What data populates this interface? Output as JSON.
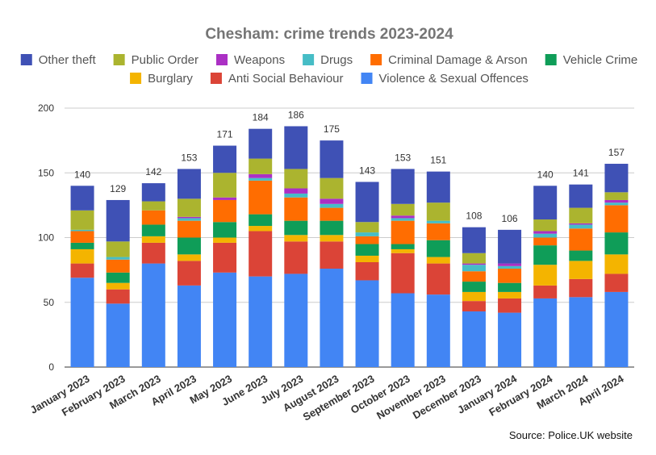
{
  "chart_data": {
    "type": "bar",
    "stacked": true,
    "title": "Chesham: crime trends 2023-2024",
    "source": "Source: Police.UK website",
    "ylim": [
      0,
      200
    ],
    "yticks": [
      0,
      50,
      100,
      150,
      200
    ],
    "grid": true,
    "legend_position": "top",
    "categories": [
      "January 2023",
      "February 2023",
      "March 2023",
      "April 2023",
      "May 2023",
      "June 2023",
      "July 2023",
      "August 2023",
      "September 2023",
      "October 2023",
      "November 2023",
      "December 2023",
      "January 2024",
      "February 2024",
      "March 2024",
      "April 2024"
    ],
    "totals": [
      140,
      129,
      142,
      153,
      171,
      184,
      186,
      175,
      143,
      153,
      151,
      108,
      106,
      140,
      141,
      157
    ],
    "legend_order": [
      "Other theft",
      "Public Order",
      "Weapons",
      "Drugs",
      "Criminal Damage & Arson",
      "Vehicle Crime",
      "Burglary",
      "Anti Social Behaviour",
      "Violence & Sexual Offences"
    ],
    "series": [
      {
        "name": "Violence & Sexual Offences",
        "color": "#4285f4",
        "values": [
          69,
          49,
          80,
          63,
          73,
          70,
          72,
          76,
          67,
          57,
          56,
          43,
          42,
          53,
          54,
          58
        ]
      },
      {
        "name": "Anti Social Behaviour",
        "color": "#db4437",
        "values": [
          11,
          11,
          16,
          19,
          23,
          35,
          25,
          21,
          14,
          31,
          24,
          8,
          11,
          10,
          14,
          14
        ]
      },
      {
        "name": "Burglary",
        "color": "#f4b400",
        "values": [
          11,
          5,
          5,
          5,
          4,
          4,
          5,
          5,
          5,
          3,
          5,
          7,
          5,
          16,
          14,
          15
        ]
      },
      {
        "name": "Vehicle Crime",
        "color": "#0f9d58",
        "values": [
          5,
          8,
          9,
          13,
          12,
          9,
          11,
          11,
          9,
          4,
          13,
          8,
          7,
          15,
          8,
          17
        ]
      },
      {
        "name": "Criminal Damage & Arson",
        "color": "#ff6d01",
        "values": [
          9,
          10,
          11,
          13,
          17,
          26,
          18,
          10,
          6,
          18,
          13,
          8,
          11,
          6,
          17,
          21
        ]
      },
      {
        "name": "Drugs",
        "color": "#46bdc6",
        "values": [
          1,
          2,
          0,
          2,
          0,
          2,
          3,
          3,
          3,
          2,
          2,
          5,
          2,
          3,
          3,
          2
        ]
      },
      {
        "name": "Weapons",
        "color": "#ab30c4",
        "values": [
          0,
          0,
          0,
          1,
          2,
          3,
          4,
          4,
          0,
          2,
          0,
          1,
          2,
          2,
          1,
          2
        ]
      },
      {
        "name": "Public Order",
        "color": "#abb42f",
        "values": [
          15,
          12,
          7,
          14,
          19,
          12,
          15,
          16,
          8,
          9,
          14,
          8,
          0,
          9,
          12,
          6
        ]
      },
      {
        "name": "Other theft",
        "color": "#3f51b5",
        "values": [
          19,
          32,
          14,
          23,
          21,
          23,
          33,
          29,
          31,
          27,
          24,
          20,
          26,
          26,
          18,
          22
        ]
      }
    ]
  }
}
